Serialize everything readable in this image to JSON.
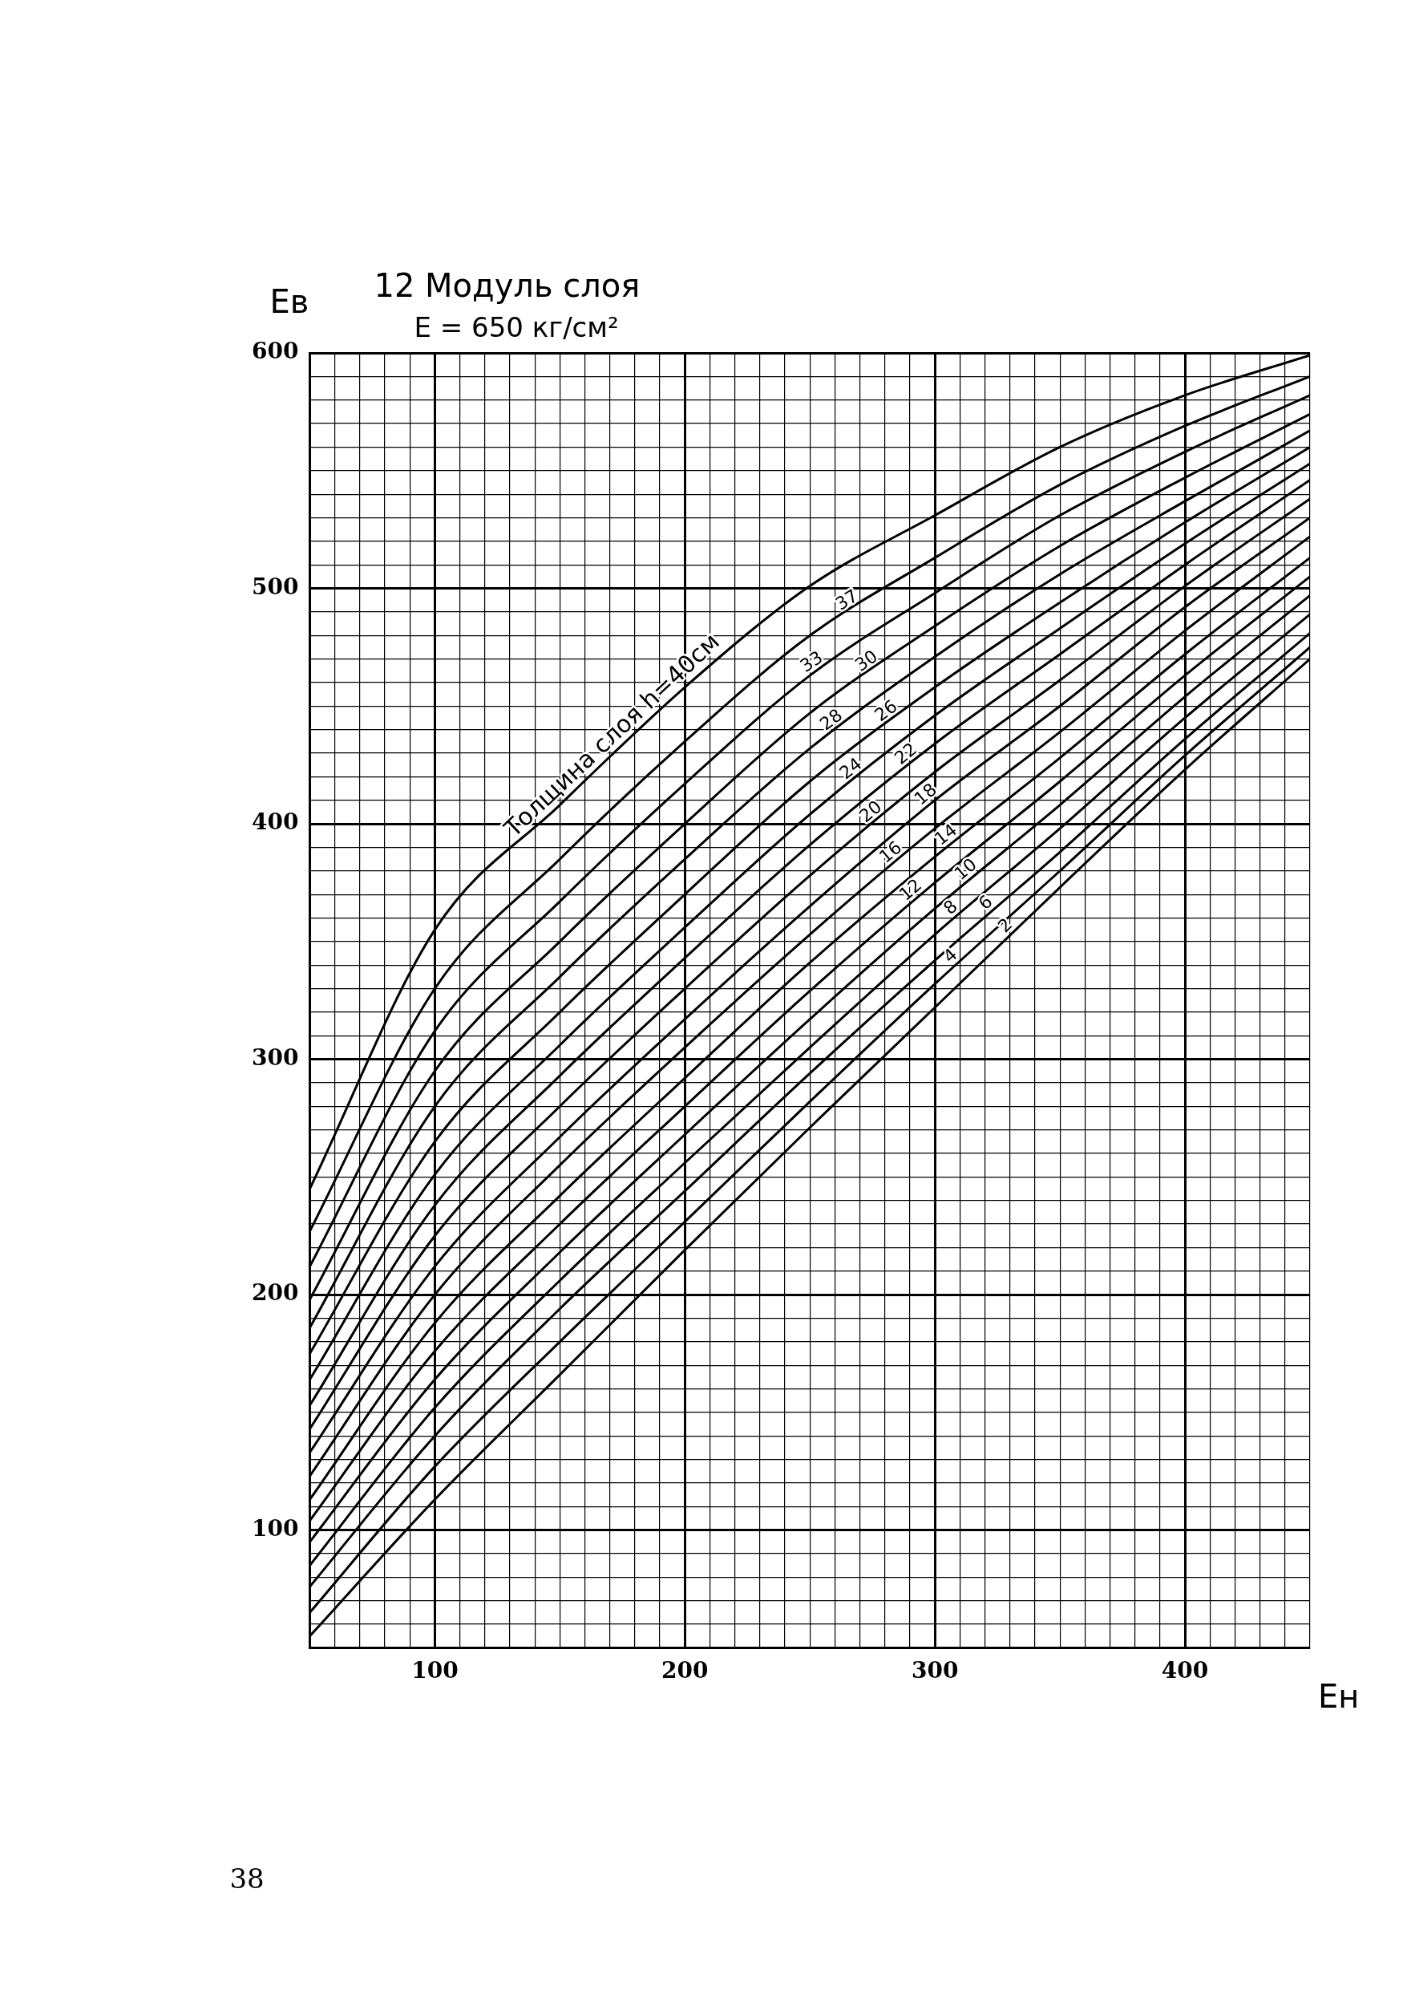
{
  "chart_data": {
    "type": "line",
    "title": "12 Модуль слоя",
    "subtitle": "E = 650 кг/см²",
    "xlabel": "Eн",
    "ylabel": "Eв",
    "annotations": [
      "38"
    ],
    "x": [
      50,
      100,
      150,
      200,
      250,
      300,
      350,
      400,
      450
    ],
    "series": [
      {
        "name": "Толщина слоя h=40см",
        "color": "#000000",
        "values": [
          245,
          355,
          408,
          458,
          501,
          531,
          560,
          582,
          599
        ]
      },
      {
        "name": "37",
        "color": "#000000",
        "values": [
          227,
          330,
          385,
          435,
          480,
          513,
          544,
          569,
          590
        ]
      },
      {
        "name": "33",
        "color": "#000000",
        "values": [
          212,
          312,
          367,
          417,
          463,
          498,
          531,
          558,
          582
        ]
      },
      {
        "name": "30",
        "color": "#000000",
        "values": [
          198,
          295,
          350,
          400,
          447,
          484,
          518,
          547,
          574
        ]
      },
      {
        "name": "28",
        "color": "#000000",
        "values": [
          186,
          280,
          335,
          385,
          432,
          471,
          506,
          537,
          567
        ]
      },
      {
        "name": "26",
        "color": "#000000",
        "values": [
          175,
          265,
          320,
          370,
          418,
          458,
          494,
          528,
          560
        ]
      },
      {
        "name": "24",
        "color": "#000000",
        "values": [
          164,
          251,
          306,
          356,
          404,
          446,
          483,
          519,
          553
        ]
      },
      {
        "name": "22",
        "color": "#000000",
        "values": [
          153,
          238,
          293,
          343,
          391,
          434,
          472,
          510,
          546
        ]
      },
      {
        "name": "20",
        "color": "#000000",
        "values": [
          143,
          225,
          280,
          330,
          378,
          422,
          461,
          501,
          538
        ]
      },
      {
        "name": "18",
        "color": "#000000",
        "values": [
          133,
          212,
          267,
          317,
          365,
          410,
          450,
          492,
          530
        ]
      },
      {
        "name": "16",
        "color": "#000000",
        "values": [
          123,
          200,
          255,
          305,
          353,
          398,
          439,
          482,
          522
        ]
      },
      {
        "name": "14",
        "color": "#000000",
        "values": [
          113,
          188,
          242,
          292,
          341,
          386,
          428,
          472,
          513
        ]
      },
      {
        "name": "12",
        "color": "#000000",
        "values": [
          104,
          176,
          230,
          280,
          329,
          375,
          418,
          463,
          505
        ]
      },
      {
        "name": "10",
        "color": "#000000",
        "values": [
          95,
          164,
          218,
          268,
          317,
          364,
          408,
          454,
          497
        ]
      },
      {
        "name": "8",
        "color": "#000000",
        "values": [
          85,
          152,
          206,
          256,
          305,
          353,
          398,
          445,
          489
        ]
      },
      {
        "name": "6",
        "color": "#000000",
        "values": [
          76,
          140,
          194,
          244,
          294,
          342,
          388,
          436,
          481
        ]
      },
      {
        "name": "4",
        "color": "#000000",
        "values": [
          65,
          127,
          180,
          231,
          282,
          332,
          380,
          429,
          475
        ]
      },
      {
        "name": "2",
        "color": "#000000",
        "values": [
          55,
          113,
          166,
          219,
          271,
          322,
          373,
          423,
          470
        ]
      }
    ],
    "xlim": [
      50,
      450
    ],
    "ylim": [
      50,
      600
    ],
    "xticks": [
      {
        "value": 50,
        "label": null
      },
      {
        "value": 60,
        "label": null
      },
      {
        "value": 70,
        "label": null
      },
      {
        "value": 80,
        "label": null
      },
      {
        "value": 90,
        "label": null
      },
      100,
      {
        "value": 110,
        "label": null
      },
      {
        "value": 120,
        "label": null
      },
      {
        "value": 130,
        "label": null
      },
      {
        "value": 140,
        "label": null
      },
      {
        "value": 150,
        "label": null
      },
      {
        "value": 160,
        "label": null
      },
      {
        "value": 170,
        "label": null
      },
      {
        "value": 180,
        "label": null
      },
      {
        "value": 190,
        "label": null
      },
      200,
      {
        "value": 210,
        "label": null
      },
      {
        "value": 220,
        "label": null
      },
      {
        "value": 230,
        "label": null
      },
      {
        "value": 240,
        "label": null
      },
      {
        "value": 250,
        "label": null
      },
      {
        "value": 260,
        "label": null
      },
      {
        "value": 270,
        "label": null
      },
      {
        "value": 280,
        "label": null
      },
      {
        "value": 290,
        "label": null
      },
      300,
      {
        "value": 310,
        "label": null
      },
      {
        "value": 320,
        "label": null
      },
      {
        "value": 330,
        "label": null
      },
      {
        "value": 340,
        "label": null
      },
      {
        "value": 350,
        "label": null
      },
      {
        "value": 360,
        "label": null
      },
      {
        "value": 370,
        "label": null
      },
      {
        "value": 380,
        "label": null
      },
      {
        "value": 390,
        "label": null
      },
      400,
      {
        "value": 410,
        "label": null
      },
      {
        "value": 420,
        "label": null
      },
      {
        "value": 430,
        "label": null
      },
      {
        "value": 440,
        "label": null
      },
      {
        "value": 450,
        "label": null
      }
    ],
    "yticks": [
      {
        "value": 50,
        "label": null
      },
      {
        "value": 60,
        "label": null
      },
      {
        "value": 70,
        "label": null
      },
      {
        "value": 80,
        "label": null
      },
      {
        "value": 90,
        "label": null
      },
      100,
      {
        "value": 110,
        "label": null
      },
      {
        "value": 120,
        "label": null
      },
      {
        "value": 130,
        "label": null
      },
      {
        "value": 140,
        "label": null
      },
      {
        "value": 150,
        "label": null
      },
      {
        "value": 160,
        "label": null
      },
      {
        "value": 170,
        "label": null
      },
      {
        "value": 180,
        "label": null
      },
      {
        "value": 190,
        "label": null
      },
      200,
      {
        "value": 210,
        "label": null
      },
      {
        "value": 220,
        "label": null
      },
      {
        "value": 230,
        "label": null
      },
      {
        "value": 240,
        "label": null
      },
      {
        "value": 250,
        "label": null
      },
      {
        "value": 260,
        "label": null
      },
      {
        "value": 270,
        "label": null
      },
      {
        "value": 280,
        "label": null
      },
      {
        "value": 290,
        "label": null
      },
      300,
      {
        "value": 310,
        "label": null
      },
      {
        "value": 320,
        "label": null
      },
      {
        "value": 330,
        "label": null
      },
      {
        "value": 340,
        "label": null
      },
      {
        "value": 350,
        "label": null
      },
      {
        "value": 360,
        "label": null
      },
      {
        "value": 370,
        "label": null
      },
      {
        "value": 380,
        "label": null
      },
      {
        "value": 390,
        "label": null
      },
      400,
      {
        "value": 410,
        "label": null
      },
      {
        "value": 420,
        "label": null
      },
      {
        "value": 430,
        "label": null
      },
      {
        "value": 440,
        "label": null
      },
      {
        "value": 450,
        "label": null
      },
      {
        "value": 460,
        "label": null
      },
      {
        "value": 470,
        "label": null
      },
      {
        "value": 480,
        "label": null
      },
      {
        "value": 490,
        "label": null
      },
      500,
      {
        "value": 510,
        "label": null
      },
      {
        "value": 520,
        "label": null
      },
      {
        "value": 530,
        "label": null
      },
      {
        "value": 540,
        "label": null
      },
      {
        "value": 550,
        "label": null
      },
      {
        "value": 560,
        "label": null
      },
      {
        "value": 570,
        "label": null
      },
      {
        "value": 580,
        "label": null
      },
      {
        "value": 590,
        "label": null
      },
      600
    ],
    "grid": true,
    "marker": "none",
    "line_style": "solid"
  }
}
